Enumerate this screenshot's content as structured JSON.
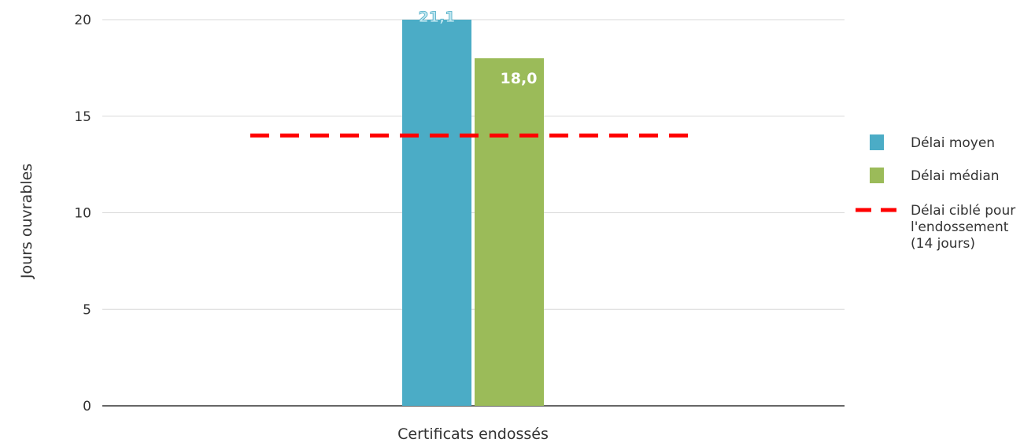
{
  "chart_data": {
    "type": "bar",
    "categories": [
      "Certificats endossés"
    ],
    "series": [
      {
        "name": "Délai moyen",
        "values": [
          21.1
        ],
        "labels": [
          "21,1"
        ],
        "color": "#4bacc6"
      },
      {
        "name": "Délai médian",
        "values": [
          18.0
        ],
        "labels": [
          "18,0"
        ],
        "color": "#9bbb59"
      }
    ],
    "reference_line": {
      "name": "Délai ciblé pour l'endossement (14 jours)",
      "value": 14,
      "color": "#ff0000",
      "style": "dashed"
    },
    "title": "",
    "xlabel": "",
    "ylabel": "Jours ouvrables",
    "ylim": [
      0,
      20
    ],
    "yticks": [
      0,
      5,
      10,
      15,
      20
    ],
    "grid": true,
    "legend": "right"
  },
  "legend": {
    "items": [
      {
        "label": "Délai moyen",
        "kind": "swatch",
        "color": "#4bacc6"
      },
      {
        "label": "Délai médian",
        "kind": "swatch",
        "color": "#9bbb59"
      },
      {
        "label_lines": [
          "Délai ciblé pour",
          "l'endossement",
          "(14 jours)"
        ],
        "kind": "dash",
        "color": "#ff0000"
      }
    ]
  }
}
